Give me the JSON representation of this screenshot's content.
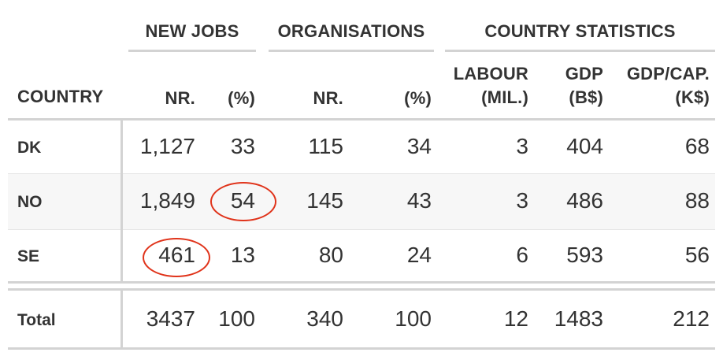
{
  "table": {
    "group_headers": {
      "new_jobs": "NEW JOBS",
      "organisations": "ORGANISATIONS",
      "country_statistics": "COUNTRY STATISTICS"
    },
    "column_headers": {
      "country": "COUNTRY",
      "new_jobs_nr": "NR.",
      "new_jobs_pct": "(%)",
      "org_nr": "NR.",
      "org_pct": "(%)",
      "labour_line1": "LABOUR",
      "labour_line2": "(MIL.)",
      "gdp_line1": "GDP",
      "gdp_line2": "(B$)",
      "gdp_cap_line1": "GDP/CAP.",
      "gdp_cap_line2": "(K$)"
    },
    "rows": [
      {
        "country": "DK",
        "new_jobs_nr": "1,127",
        "new_jobs_pct": "33",
        "org_nr": "115",
        "org_pct": "34",
        "labour": "3",
        "gdp": "404",
        "gdp_cap": "68"
      },
      {
        "country": "NO",
        "new_jobs_nr": "1,849",
        "new_jobs_pct": "54",
        "org_nr": "145",
        "org_pct": "43",
        "labour": "3",
        "gdp": "486",
        "gdp_cap": "88"
      },
      {
        "country": "SE",
        "new_jobs_nr": "461",
        "new_jobs_pct": "13",
        "org_nr": "80",
        "org_pct": "24",
        "labour": "6",
        "gdp": "593",
        "gdp_cap": "56"
      }
    ],
    "total": {
      "country": "Total",
      "new_jobs_nr": "3437",
      "new_jobs_pct": "100",
      "org_nr": "340",
      "org_pct": "100",
      "labour": "12",
      "gdp": "1483",
      "gdp_cap": "212"
    }
  },
  "colors": {
    "text": "#333333",
    "rule": "#d3d3d3",
    "stripe": "#f7f7f7",
    "highlight_circle": "#e0331a"
  }
}
